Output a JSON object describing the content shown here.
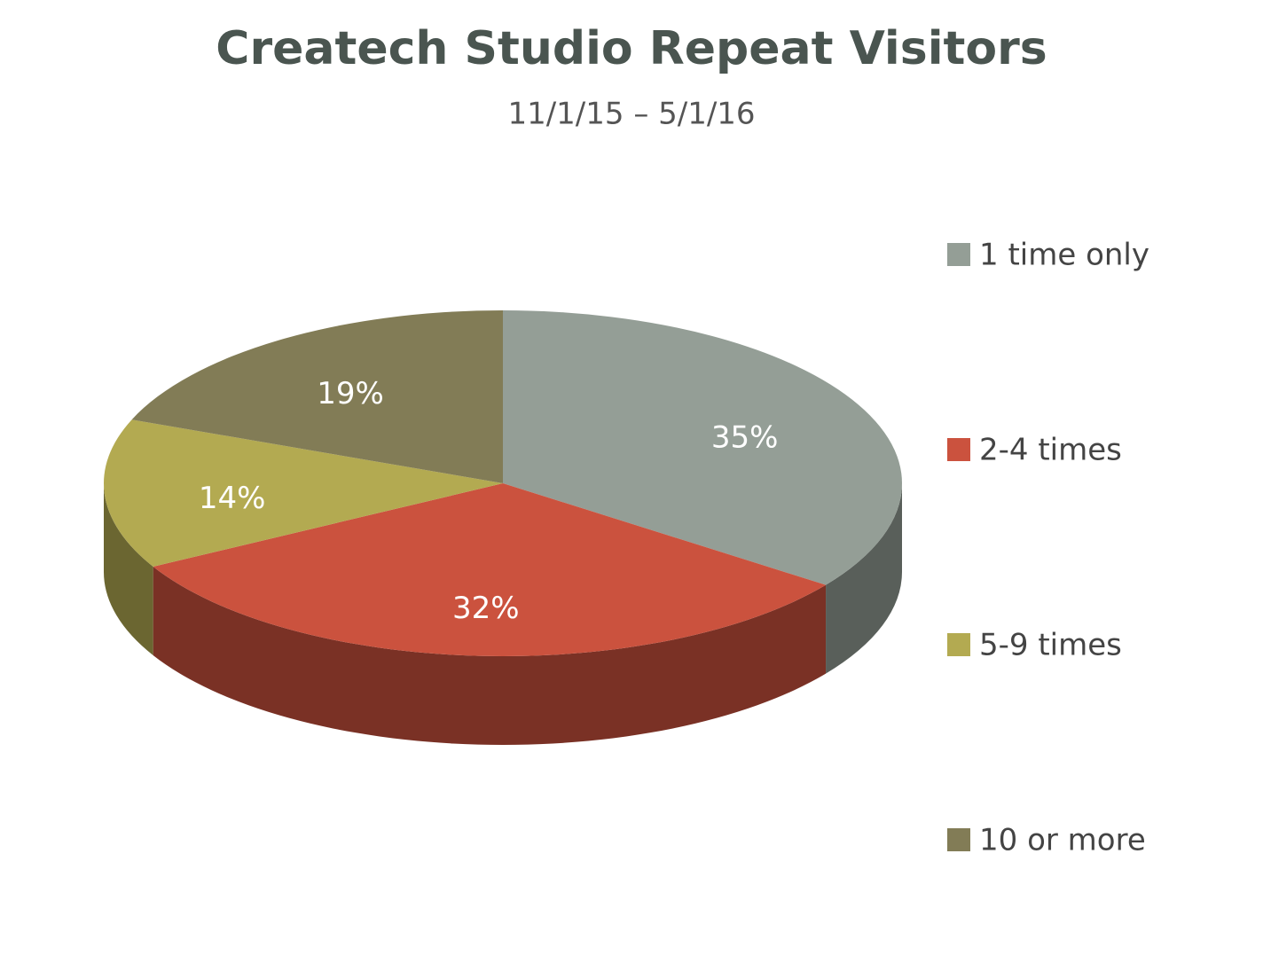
{
  "chart_data": {
    "type": "pie",
    "title": "Createch Studio Repeat Visitors",
    "subtitle": "11/1/15 – 5/1/16",
    "categories": [
      "1 time only",
      "2-4 times",
      "5-9 times",
      "10 or more"
    ],
    "values": [
      35,
      32,
      14,
      19
    ],
    "value_labels": [
      "35%",
      "32%",
      "14%",
      "19%"
    ],
    "colors": [
      "#949e96",
      "#cb523e",
      "#b3aa51",
      "#827c56"
    ],
    "legend": "right"
  }
}
